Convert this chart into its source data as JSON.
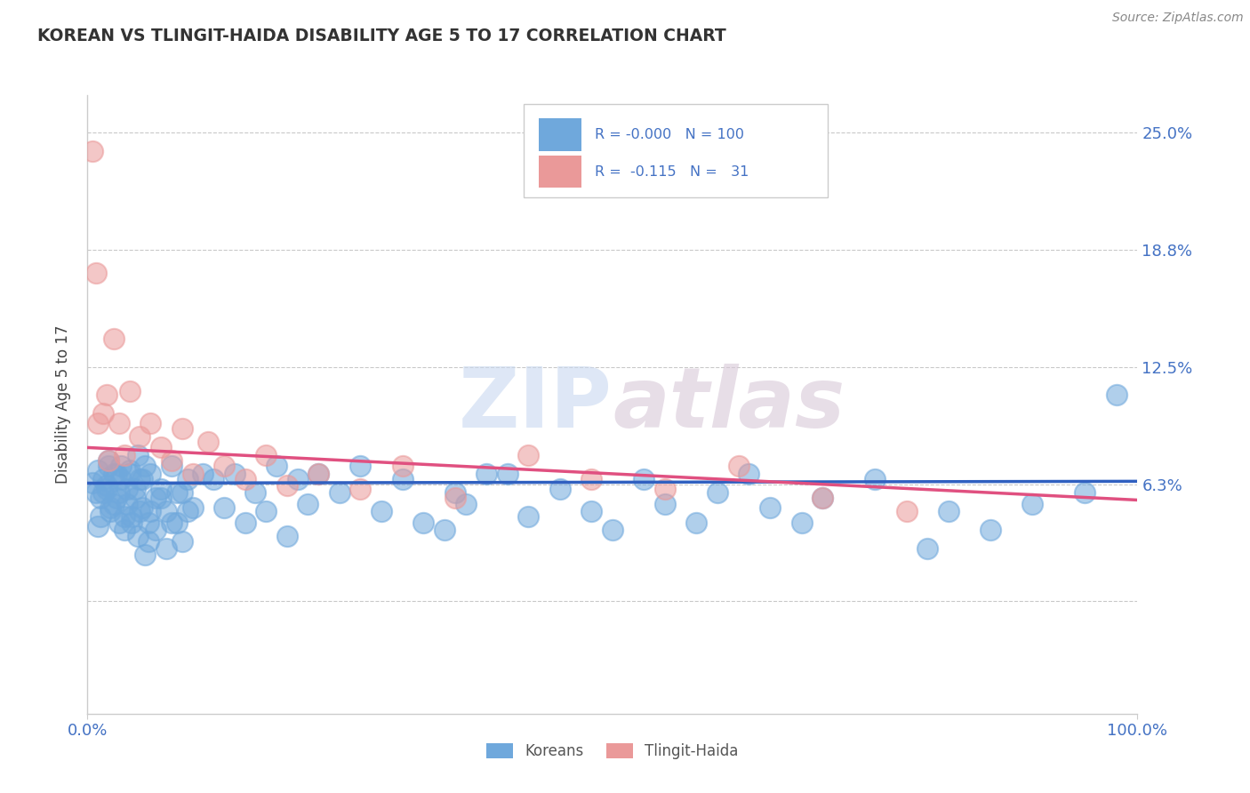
{
  "title": "KOREAN VS TLINGIT-HAIDA DISABILITY AGE 5 TO 17 CORRELATION CHART",
  "source": "Source: ZipAtlas.com",
  "ylabel": "Disability Age 5 to 17",
  "yticks": [
    0.0,
    0.0625,
    0.125,
    0.1875,
    0.25
  ],
  "ytick_labels": [
    "",
    "6.3%",
    "12.5%",
    "18.8%",
    "25.0%"
  ],
  "xmin": 0.0,
  "xmax": 1.0,
  "ymin": -0.06,
  "ymax": 0.27,
  "blue_color": "#6fa8dc",
  "pink_color": "#ea9999",
  "blue_label": "Koreans",
  "pink_label": "Tlingit-Haida",
  "blue_intercept": 0.063,
  "blue_slope": 0.001,
  "pink_intercept": 0.082,
  "pink_slope": -0.028,
  "korean_x": [
    0.005,
    0.008,
    0.01,
    0.012,
    0.015,
    0.018,
    0.02,
    0.022,
    0.025,
    0.028,
    0.01,
    0.012,
    0.015,
    0.018,
    0.02,
    0.022,
    0.025,
    0.028,
    0.03,
    0.032,
    0.03,
    0.032,
    0.035,
    0.038,
    0.04,
    0.042,
    0.045,
    0.048,
    0.05,
    0.052,
    0.035,
    0.038,
    0.04,
    0.042,
    0.045,
    0.048,
    0.05,
    0.052,
    0.055,
    0.058,
    0.06,
    0.065,
    0.07,
    0.075,
    0.08,
    0.085,
    0.09,
    0.095,
    0.1,
    0.11,
    0.055,
    0.058,
    0.06,
    0.065,
    0.07,
    0.075,
    0.08,
    0.085,
    0.09,
    0.095,
    0.12,
    0.13,
    0.14,
    0.15,
    0.16,
    0.17,
    0.18,
    0.19,
    0.2,
    0.21,
    0.22,
    0.24,
    0.26,
    0.28,
    0.3,
    0.32,
    0.35,
    0.38,
    0.34,
    0.36,
    0.4,
    0.42,
    0.45,
    0.48,
    0.5,
    0.53,
    0.55,
    0.58,
    0.6,
    0.63,
    0.65,
    0.68,
    0.7,
    0.75,
    0.8,
    0.82,
    0.86,
    0.9,
    0.95,
    0.98
  ],
  "korean_y": [
    0.063,
    0.058,
    0.07,
    0.055,
    0.065,
    0.06,
    0.072,
    0.05,
    0.068,
    0.055,
    0.04,
    0.045,
    0.058,
    0.062,
    0.075,
    0.048,
    0.052,
    0.068,
    0.042,
    0.065,
    0.058,
    0.072,
    0.045,
    0.06,
    0.068,
    0.042,
    0.055,
    0.078,
    0.048,
    0.065,
    0.038,
    0.052,
    0.07,
    0.045,
    0.06,
    0.035,
    0.065,
    0.05,
    0.072,
    0.042,
    0.068,
    0.055,
    0.06,
    0.048,
    0.072,
    0.042,
    0.058,
    0.065,
    0.05,
    0.068,
    0.025,
    0.032,
    0.048,
    0.038,
    0.055,
    0.028,
    0.042,
    0.058,
    0.032,
    0.048,
    0.065,
    0.05,
    0.068,
    0.042,
    0.058,
    0.048,
    0.072,
    0.035,
    0.065,
    0.052,
    0.068,
    0.058,
    0.072,
    0.048,
    0.065,
    0.042,
    0.058,
    0.068,
    0.038,
    0.052,
    0.068,
    0.045,
    0.06,
    0.048,
    0.038,
    0.065,
    0.052,
    0.042,
    0.058,
    0.068,
    0.05,
    0.042,
    0.055,
    0.065,
    0.028,
    0.048,
    0.038,
    0.052,
    0.058,
    0.11
  ],
  "tlingit_x": [
    0.005,
    0.008,
    0.01,
    0.015,
    0.018,
    0.02,
    0.025,
    0.03,
    0.035,
    0.04,
    0.05,
    0.06,
    0.07,
    0.08,
    0.09,
    0.1,
    0.115,
    0.13,
    0.15,
    0.17,
    0.19,
    0.22,
    0.26,
    0.3,
    0.35,
    0.42,
    0.48,
    0.55,
    0.62,
    0.7,
    0.78
  ],
  "tlingit_y": [
    0.24,
    0.175,
    0.095,
    0.1,
    0.11,
    0.075,
    0.14,
    0.095,
    0.078,
    0.112,
    0.088,
    0.095,
    0.082,
    0.075,
    0.092,
    0.068,
    0.085,
    0.072,
    0.065,
    0.078,
    0.062,
    0.068,
    0.06,
    0.072,
    0.055,
    0.078,
    0.065,
    0.06,
    0.072,
    0.055,
    0.048
  ]
}
